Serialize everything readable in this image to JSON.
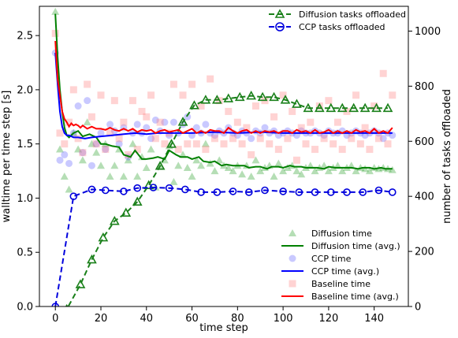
{
  "chart_data": {
    "type": "line",
    "xlabel": "time step",
    "ylabel_left": "walltime per time step [s]",
    "ylabel_right": "number of tasks offloaded",
    "xlim": [
      -7,
      155
    ],
    "ylim_left": [
      0,
      2.77
    ],
    "ylim_right": [
      0,
      1090
    ],
    "x_ticks": [
      0,
      20,
      40,
      60,
      80,
      100,
      120,
      140
    ],
    "y_ticks_left": [
      0.0,
      0.5,
      1.0,
      1.5,
      2.0,
      2.5
    ],
    "y_ticks_right": [
      0,
      200,
      400,
      600,
      800,
      1000
    ],
    "grid": false,
    "legends": [
      {
        "placement": "top-right",
        "entries": [
          "Diffusion tasks offloaded",
          "CCP tasks offloaded"
        ]
      },
      {
        "placement": "bottom-right",
        "entries": [
          "Diffusion time",
          "Diffusion time (avg.)",
          "CCP time",
          "CCP time (avg.)",
          "Baseline time",
          "Baseline time (avg.)"
        ]
      }
    ],
    "series": [
      {
        "name": "Diffusion tasks offloaded",
        "axis": "right",
        "style": "dashed-triangle",
        "color": "#1a801a",
        "x": [
          0,
          5,
          11,
          16,
          21,
          26,
          31,
          36,
          41,
          46,
          51,
          56,
          61,
          66,
          71,
          76,
          81,
          86,
          91,
          96,
          101,
          106,
          111,
          116,
          121,
          126,
          131,
          136,
          141,
          146
        ],
        "y": [
          -80,
          -10,
          80,
          170,
          250,
          310,
          340,
          380,
          440,
          510,
          590,
          670,
          730,
          750,
          750,
          755,
          760,
          765,
          760,
          760,
          750,
          735,
          720,
          720,
          720,
          720,
          720,
          720,
          720,
          720
        ]
      },
      {
        "name": "CCP tasks offloaded",
        "axis": "right",
        "style": "dashed-circle",
        "color": "#0000dd",
        "x": [
          0,
          8,
          16,
          22,
          30,
          36,
          43,
          50,
          57,
          64,
          71,
          78,
          85,
          92,
          100,
          107,
          114,
          121,
          128,
          135,
          142,
          148
        ],
        "y": [
          0,
          400,
          425,
          422,
          418,
          430,
          432,
          430,
          425,
          415,
          415,
          418,
          415,
          422,
          418,
          415,
          415,
          415,
          415,
          415,
          422,
          415
        ]
      },
      {
        "name": "Diffusion time (avg.)",
        "axis": "left",
        "style": "line",
        "color": "#008000",
        "x": [
          0,
          1,
          2,
          3,
          4,
          5,
          6,
          8,
          10,
          12,
          15,
          18,
          20,
          22,
          25,
          28,
          30,
          33,
          35,
          38,
          40,
          43,
          45,
          48,
          50,
          53,
          55,
          58,
          60,
          63,
          65,
          68,
          70,
          73,
          75,
          78,
          80,
          83,
          85,
          88,
          90,
          93,
          95,
          98,
          100,
          103,
          105,
          108,
          110,
          113,
          115,
          118,
          120,
          123,
          125,
          128,
          130,
          133,
          135,
          138,
          140,
          143,
          145,
          148
        ],
        "y": [
          2.7,
          2.3,
          2.0,
          1.8,
          1.65,
          1.58,
          1.56,
          1.6,
          1.62,
          1.57,
          1.59,
          1.56,
          1.5,
          1.5,
          1.48,
          1.47,
          1.4,
          1.38,
          1.44,
          1.36,
          1.36,
          1.37,
          1.38,
          1.36,
          1.44,
          1.4,
          1.38,
          1.38,
          1.36,
          1.38,
          1.34,
          1.33,
          1.34,
          1.3,
          1.31,
          1.3,
          1.3,
          1.3,
          1.28,
          1.29,
          1.29,
          1.27,
          1.29,
          1.29,
          1.28,
          1.3,
          1.29,
          1.29,
          1.28,
          1.28,
          1.28,
          1.27,
          1.29,
          1.28,
          1.28,
          1.28,
          1.28,
          1.27,
          1.28,
          1.28,
          1.27,
          1.28,
          1.27,
          1.27
        ]
      },
      {
        "name": "CCP time (avg.)",
        "axis": "left",
        "style": "line",
        "color": "#0000ff",
        "x": [
          0,
          1,
          2,
          3,
          4,
          5,
          6,
          8,
          10,
          13,
          16,
          20,
          25,
          30,
          35,
          40,
          45,
          50,
          55,
          60,
          70,
          80,
          90,
          100,
          110,
          120,
          130,
          140,
          148
        ],
        "y": [
          2.34,
          2.05,
          1.8,
          1.66,
          1.6,
          1.58,
          1.58,
          1.56,
          1.56,
          1.55,
          1.56,
          1.57,
          1.58,
          1.59,
          1.6,
          1.59,
          1.6,
          1.6,
          1.6,
          1.6,
          1.61,
          1.6,
          1.61,
          1.6,
          1.6,
          1.6,
          1.6,
          1.6,
          1.6
        ]
      },
      {
        "name": "Baseline time (avg.)",
        "axis": "left",
        "style": "line",
        "color": "#ff0000",
        "x": [
          0,
          1,
          2,
          3,
          4,
          5,
          6,
          7,
          8,
          9,
          10,
          11,
          12,
          14,
          16,
          18,
          20,
          22,
          24,
          26,
          28,
          30,
          32,
          34,
          36,
          38,
          40,
          42,
          44,
          46,
          48,
          50,
          52,
          54,
          56,
          58,
          60,
          62,
          64,
          66,
          68,
          70,
          72,
          74,
          76,
          78,
          80,
          82,
          84,
          86,
          88,
          90,
          92,
          94,
          96,
          98,
          100,
          102,
          104,
          106,
          108,
          110,
          112,
          114,
          116,
          118,
          120,
          122,
          124,
          126,
          128,
          130,
          132,
          134,
          136,
          138,
          140,
          142,
          144,
          146,
          148
        ],
        "y": [
          2.45,
          2.1,
          1.95,
          1.8,
          1.73,
          1.7,
          1.66,
          1.69,
          1.67,
          1.68,
          1.67,
          1.65,
          1.67,
          1.64,
          1.66,
          1.64,
          1.64,
          1.63,
          1.65,
          1.63,
          1.62,
          1.64,
          1.62,
          1.64,
          1.61,
          1.63,
          1.62,
          1.63,
          1.6,
          1.62,
          1.63,
          1.61,
          1.62,
          1.63,
          1.6,
          1.62,
          1.64,
          1.6,
          1.62,
          1.6,
          1.63,
          1.62,
          1.62,
          1.6,
          1.65,
          1.62,
          1.6,
          1.62,
          1.63,
          1.6,
          1.62,
          1.6,
          1.62,
          1.61,
          1.62,
          1.6,
          1.62,
          1.62,
          1.6,
          1.63,
          1.61,
          1.62,
          1.6,
          1.63,
          1.6,
          1.61,
          1.63,
          1.6,
          1.62,
          1.6,
          1.62,
          1.6,
          1.63,
          1.61,
          1.62,
          1.6,
          1.64,
          1.6,
          1.62,
          1.6,
          1.65
        ]
      },
      {
        "name": "Diffusion time",
        "axis": "left",
        "style": "scatter-triangle",
        "color": "#2ca02c",
        "x": [
          0,
          2,
          4,
          6,
          8,
          10,
          12,
          14,
          16,
          18,
          20,
          22,
          24,
          26,
          28,
          30,
          32,
          34,
          36,
          38,
          40,
          42,
          44,
          46,
          48,
          50,
          52,
          54,
          56,
          58,
          60,
          62,
          64,
          66,
          68,
          70,
          72,
          74,
          76,
          78,
          80,
          82,
          84,
          86,
          88,
          90,
          92,
          94,
          96,
          98,
          100,
          102,
          104,
          106,
          108,
          110,
          112,
          114,
          116,
          118,
          120,
          122,
          124,
          126,
          128,
          130,
          132,
          134,
          136,
          138,
          140,
          142,
          144,
          146,
          148
        ],
        "y": [
          2.72,
          1.45,
          1.2,
          1.08,
          1.6,
          1.45,
          1.35,
          1.7,
          1.5,
          1.42,
          1.3,
          1.5,
          1.2,
          1.3,
          1.45,
          1.2,
          1.35,
          1.5,
          1.2,
          1.38,
          1.28,
          1.45,
          1.1,
          1.3,
          1.35,
          1.48,
          1.15,
          1.3,
          1.4,
          1.28,
          1.2,
          1.35,
          1.3,
          1.5,
          1.32,
          1.25,
          1.35,
          1.3,
          1.28,
          1.25,
          1.3,
          1.22,
          1.3,
          1.2,
          1.35,
          1.25,
          1.28,
          1.3,
          1.2,
          1.32,
          1.25,
          1.28,
          1.3,
          1.25,
          1.22,
          1.28,
          1.3,
          1.25,
          1.28,
          1.3,
          1.25,
          1.28,
          1.3,
          1.25,
          1.28,
          1.3,
          1.25,
          1.28,
          1.27,
          1.25,
          1.28,
          1.27,
          1.28,
          1.27,
          1.26
        ]
      },
      {
        "name": "CCP time",
        "axis": "left",
        "style": "scatter-circle",
        "color": "#6464ff",
        "x": [
          0,
          2,
          4,
          6,
          8,
          10,
          12,
          14,
          16,
          18,
          20,
          22,
          24,
          26,
          28,
          30,
          32,
          34,
          36,
          38,
          40,
          42,
          44,
          46,
          48,
          50,
          52,
          54,
          56,
          58,
          60,
          62,
          64,
          66,
          68,
          70,
          72,
          74,
          76,
          78,
          80,
          82,
          84,
          86,
          88,
          90,
          92,
          94,
          96,
          98,
          100,
          102,
          104,
          106,
          108,
          110,
          112,
          114,
          116,
          118,
          120,
          122,
          124,
          126,
          128,
          130,
          132,
          134,
          136,
          138,
          140,
          142,
          144,
          146,
          148
        ],
        "y": [
          2.34,
          1.35,
          1.4,
          1.32,
          1.6,
          1.85,
          1.42,
          1.9,
          1.3,
          1.5,
          1.6,
          1.45,
          1.68,
          1.62,
          1.5,
          1.65,
          1.38,
          1.6,
          1.68,
          1.6,
          1.65,
          1.55,
          1.72,
          1.62,
          1.7,
          1.58,
          1.7,
          1.6,
          1.68,
          1.75,
          1.58,
          1.65,
          1.6,
          1.68,
          1.6,
          1.58,
          1.62,
          1.6,
          1.65,
          1.6,
          1.58,
          1.62,
          1.6,
          1.55,
          1.62,
          1.6,
          1.65,
          1.6,
          1.62,
          1.58,
          1.6,
          1.62,
          1.6,
          1.58,
          1.62,
          1.6,
          1.6,
          1.62,
          1.6,
          1.58,
          1.62,
          1.6,
          1.6,
          1.62,
          1.58,
          1.6,
          1.62,
          1.6,
          1.58,
          1.6,
          1.62,
          1.6,
          1.55,
          1.6,
          1.58
        ]
      },
      {
        "name": "Baseline time",
        "axis": "left",
        "style": "scatter-square",
        "color": "#ff8080",
        "x": [
          0,
          2,
          4,
          6,
          8,
          10,
          12,
          14,
          16,
          18,
          20,
          22,
          24,
          26,
          28,
          30,
          32,
          34,
          36,
          38,
          40,
          42,
          44,
          46,
          48,
          50,
          52,
          54,
          56,
          58,
          60,
          62,
          64,
          66,
          68,
          70,
          72,
          74,
          76,
          78,
          80,
          82,
          84,
          86,
          88,
          90,
          92,
          94,
          96,
          98,
          100,
          102,
          104,
          106,
          108,
          110,
          112,
          114,
          116,
          118,
          120,
          122,
          124,
          126,
          128,
          130,
          132,
          134,
          136,
          138,
          140,
          142,
          144,
          146,
          148
        ],
        "y": [
          2.52,
          1.6,
          1.5,
          1.7,
          2.0,
          1.55,
          1.42,
          2.05,
          1.75,
          1.5,
          1.95,
          1.45,
          1.6,
          1.9,
          1.55,
          1.7,
          1.4,
          1.9,
          1.45,
          1.8,
          1.75,
          1.95,
          1.55,
          1.7,
          1.5,
          1.6,
          2.05,
          1.45,
          1.95,
          1.5,
          2.05,
          1.5,
          1.85,
          1.45,
          2.1,
          1.55,
          1.9,
          1.5,
          1.8,
          1.55,
          1.7,
          1.5,
          1.65,
          1.4,
          1.85,
          1.55,
          1.9,
          1.5,
          1.75,
          1.45,
          1.95,
          1.55,
          1.8,
          1.35,
          1.65,
          1.5,
          1.7,
          1.45,
          1.85,
          1.55,
          1.9,
          1.5,
          1.7,
          1.45,
          1.8,
          1.55,
          1.95,
          1.5,
          1.65,
          1.45,
          1.85,
          1.55,
          2.15,
          1.5,
          1.95
        ]
      }
    ]
  }
}
